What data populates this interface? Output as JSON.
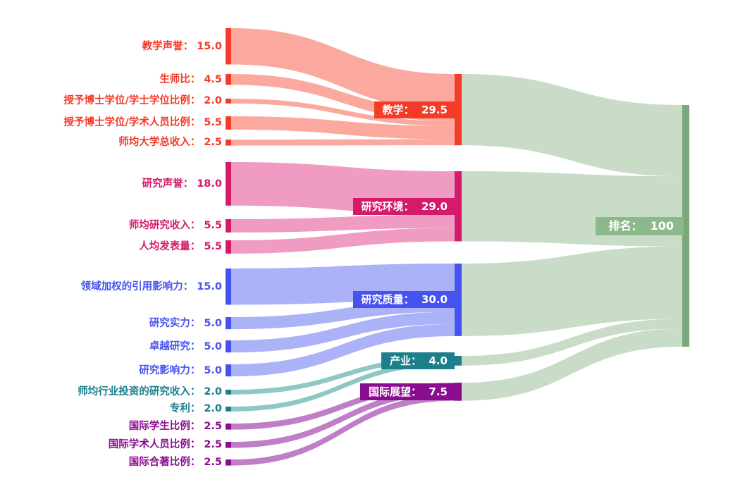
{
  "page": {
    "background": "#ffffff",
    "description_labels": {
      "final_text": "排名：  100"
    }
  },
  "chart_data": {
    "type": "sankey",
    "title": "",
    "total": 100,
    "legend_position": "none",
    "grid": false,
    "groups": [
      {
        "name": "teaching",
        "node_color": "#f43b28",
        "flow_color": "#fba99e",
        "target": {
          "label": "教学",
          "value": 29.5,
          "text": "教学：  29.5"
        },
        "sources": [
          {
            "label": "教学声誉",
            "value": 15.0,
            "text": "教学声誉： 15.0"
          },
          {
            "label": "生师比",
            "value": 4.5,
            "text": "生师比： 4.5"
          },
          {
            "label": "授予博士学位/学士学位比例",
            "value": 2.0,
            "text": "授予博士学位/学士学位比例： 2.0"
          },
          {
            "label": "授予博士学位/学术人员比例",
            "value": 5.5,
            "text": "授予博士学位/学术人员比例： 5.5"
          },
          {
            "label": "师均大学总收入",
            "value": 2.5,
            "text": "师均大学总收入： 2.5"
          }
        ]
      },
      {
        "name": "research-environment",
        "node_color": "#d61a6b",
        "flow_color": "#f09cc2",
        "target": {
          "label": "研究环境",
          "value": 29.0,
          "text": "研究环境：  29.0"
        },
        "sources": [
          {
            "label": "研究声誉",
            "value": 18.0,
            "text": "研究声誉： 18.0"
          },
          {
            "label": "师均研究收入",
            "value": 5.5,
            "text": "师均研究收入： 5.5"
          },
          {
            "label": "人均发表量",
            "value": 5.5,
            "text": "人均发表量： 5.5"
          }
        ]
      },
      {
        "name": "research-quality",
        "node_color": "#4753ee",
        "flow_color": "#abb2f7",
        "target": {
          "label": "研究质量",
          "value": 30.0,
          "text": "研究质量：  30.0"
        },
        "sources": [
          {
            "label": "领域加权的引用影响力",
            "value": 15.0,
            "text": "领域加权的引用影响力： 15.0"
          },
          {
            "label": "研究实力",
            "value": 5.0,
            "text": "研究实力： 5.0"
          },
          {
            "label": "卓越研究",
            "value": 5.0,
            "text": "卓越研究： 5.0"
          },
          {
            "label": "研究影响力",
            "value": 5.0,
            "text": "研究影响力： 5.0"
          }
        ]
      },
      {
        "name": "industry",
        "node_color": "#1b7f8c",
        "flow_color": "#8fc7c5",
        "target": {
          "label": "产业",
          "value": 4.0,
          "text": "产业：  4.0"
        },
        "sources": [
          {
            "label": "师均行业投资的研究收入",
            "value": 2.0,
            "text": "师均行业投资的研究收入： 2.0"
          },
          {
            "label": "专利",
            "value": 2.0,
            "text": "专利： 2.0"
          }
        ]
      },
      {
        "name": "international-outlook",
        "node_color": "#8a0d8f",
        "flow_color": "#bf7ec6",
        "target": {
          "label": "国际展望",
          "value": 7.5,
          "text": "国际展望：  7.5"
        },
        "sources": [
          {
            "label": "国际学生比例",
            "value": 2.5,
            "text": "国际学生比例： 2.5"
          },
          {
            "label": "国际学术人员比例",
            "value": 2.5,
            "text": "国际学术人员比例： 2.5"
          },
          {
            "label": "国际合著比例",
            "value": 2.5,
            "text": "国际合著比例： 2.5"
          }
        ]
      }
    ],
    "final": {
      "label": "排名",
      "value": 100,
      "text": "排名：  100",
      "node_color": "#7aa87a",
      "flow_color": "#c9dcc8",
      "label_bg": "#8cb98c"
    }
  }
}
